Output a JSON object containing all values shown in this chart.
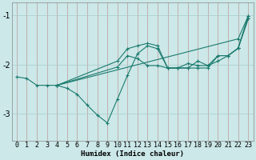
{
  "xlabel": "Humidex (Indice chaleur)",
  "ylabel": "",
  "xlim": [
    -0.5,
    23.5
  ],
  "ylim": [
    -3.55,
    -0.75
  ],
  "yticks": [
    -3,
    -2,
    -1
  ],
  "xticks": [
    0,
    1,
    2,
    3,
    4,
    5,
    6,
    7,
    8,
    9,
    10,
    11,
    12,
    13,
    14,
    15,
    16,
    17,
    18,
    19,
    20,
    21,
    22,
    23
  ],
  "bg_color": "#cce8e8",
  "grid_color_v": "#bb9999",
  "grid_color_h": "#aacccc",
  "line_color": "#1a7a6e",
  "series": [
    {
      "x": [
        0,
        1,
        2,
        3,
        4,
        10,
        11,
        12,
        13,
        14,
        15,
        16,
        17,
        18,
        19,
        20,
        21,
        22,
        23
      ],
      "y": [
        -2.25,
        -2.28,
        -2.42,
        -2.42,
        -2.42,
        -2.05,
        -1.82,
        -1.88,
        -2.02,
        -2.02,
        -2.07,
        -2.07,
        -2.07,
        -1.93,
        -2.02,
        -1.93,
        -1.82,
        -1.67,
        -1.07
      ]
    },
    {
      "x": [
        4,
        5,
        6,
        7,
        8,
        9,
        10,
        11,
        12,
        13,
        14,
        15,
        16,
        17,
        18,
        19,
        20,
        21,
        22,
        23
      ],
      "y": [
        -2.42,
        -2.48,
        -2.6,
        -2.82,
        -3.02,
        -3.18,
        -2.7,
        -2.22,
        -1.78,
        -1.62,
        -1.68,
        -2.07,
        -2.07,
        -2.07,
        -2.07,
        -2.07,
        -1.82,
        -1.82,
        -1.67,
        -1.07
      ]
    },
    {
      "x": [
        4,
        10,
        11,
        12,
        13,
        14,
        15,
        16,
        17,
        18,
        19,
        20,
        21,
        22,
        23
      ],
      "y": [
        -2.42,
        -1.93,
        -1.68,
        -1.62,
        -1.57,
        -1.62,
        -2.07,
        -2.07,
        -1.98,
        -2.02,
        -2.02,
        -1.82,
        -1.82,
        -1.67,
        -1.02
      ]
    },
    {
      "x": [
        4,
        22,
        23
      ],
      "y": [
        -2.42,
        -1.48,
        -1.02
      ]
    }
  ],
  "marker": "+",
  "markersize": 3.5,
  "markeredgewidth": 0.8,
  "linewidth": 0.8,
  "xlabel_fontsize": 6.5,
  "tick_labelsize": 6,
  "xlabel_bold": true
}
